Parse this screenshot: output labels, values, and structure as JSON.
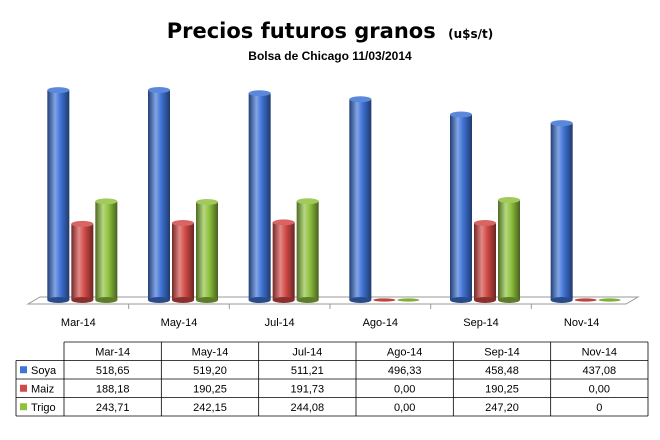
{
  "colors": {
    "soya": "#3f73d6",
    "maiz": "#d24a46",
    "trigo": "#8fc13e"
  },
  "chart_data": {
    "type": "bar",
    "title": "Precios futuros granos",
    "title_unit": "(u$s/t)",
    "subtitle": "Bolsa de Chicago  11/03/2014",
    "categories": [
      "Mar-14",
      "May-14",
      "Jul-14",
      "Ago-14",
      "Sep-14",
      "Nov-14"
    ],
    "series": [
      {
        "name": "Soya",
        "color": "#3f73d6",
        "values": [
          518.65,
          519.2,
          511.21,
          496.33,
          458.48,
          437.08
        ]
      },
      {
        "name": "Maiz",
        "color": "#d24a46",
        "values": [
          188.18,
          190.25,
          191.73,
          0.0,
          190.25,
          0.0
        ]
      },
      {
        "name": "Trigo",
        "color": "#8fc13e",
        "values": [
          243.71,
          242.15,
          244.08,
          0.0,
          247.2,
          0
        ]
      }
    ],
    "table": {
      "rows": [
        {
          "label": "Soya",
          "cells": [
            "518,65",
            "519,20",
            "511,21",
            "496,33",
            "458,48",
            "437,08"
          ]
        },
        {
          "label": "Maiz",
          "cells": [
            "188,18",
            "190,25",
            "191,73",
            "0,00",
            "190,25",
            "0,00"
          ]
        },
        {
          "label": "Trigo",
          "cells": [
            "243,71",
            "242,15",
            "244,08",
            "0,00",
            "247,20",
            "0"
          ]
        }
      ]
    },
    "ylim": [
      0,
      560
    ],
    "grid": false,
    "legend": "data-table"
  }
}
